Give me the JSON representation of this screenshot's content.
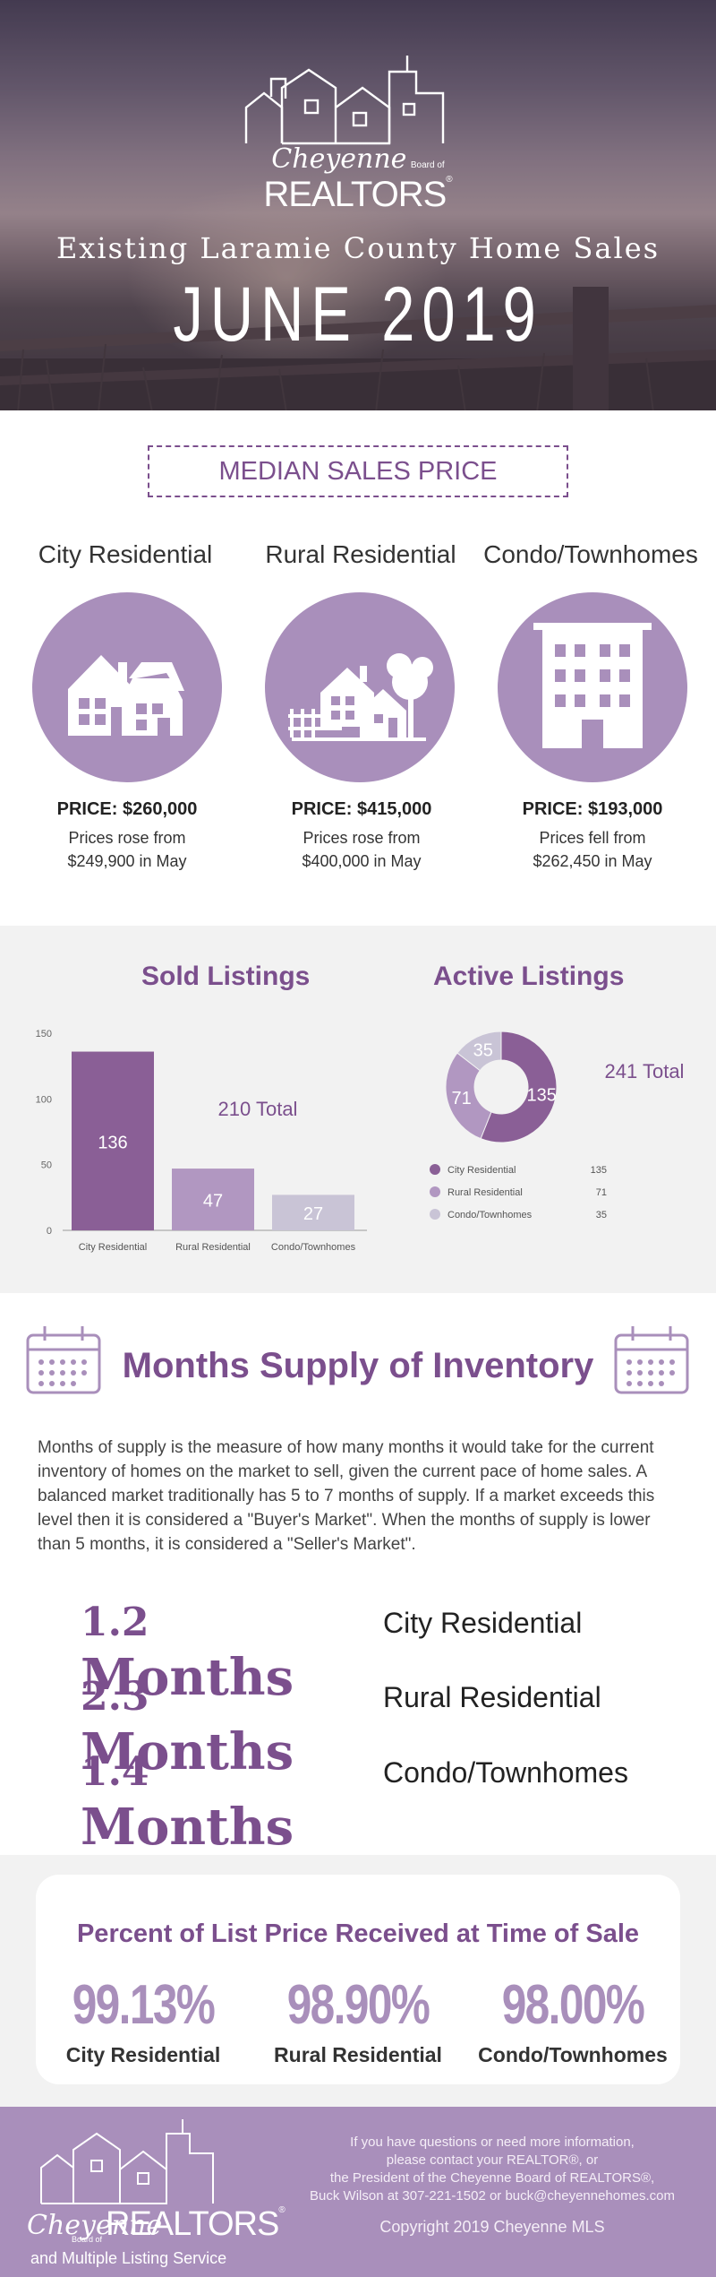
{
  "hero": {
    "brand_script": "Cheyenne",
    "brand_board": "Board of",
    "brand_name": "REALTORS",
    "brand_reg": "®",
    "title": "Existing Laramie County Home Sales",
    "period": "JUNE 2019"
  },
  "median": {
    "section_title": "MEDIAN SALES PRICE",
    "items": [
      {
        "type": "City Residential",
        "icon": "house-icon",
        "price": "PRICE: $260,000",
        "note1": "Prices rose from",
        "note2": "$249,900 in May"
      },
      {
        "type": "Rural Residential",
        "icon": "rural-house-icon",
        "price": "PRICE: $415,000",
        "note1": "Prices rose from",
        "note2": "$400,000 in May"
      },
      {
        "type": "Condo/Townhomes",
        "icon": "building-icon",
        "price": "PRICE: $193,000",
        "note1": "Prices fell from",
        "note2": "$262,450 in May"
      }
    ]
  },
  "listings": {
    "sold_title": "Sold Listings",
    "active_title": "Active Listings",
    "colors": {
      "dark": "#8a5f96",
      "mid": "#b197c1",
      "light": "#c9c4d6"
    }
  },
  "chart_data": [
    {
      "type": "bar",
      "title": "Sold Listings",
      "categories": [
        "City Residential",
        "Rural Residential",
        "Condo/Townhomes"
      ],
      "values": [
        136,
        47,
        27
      ],
      "ylim": [
        0,
        150
      ],
      "yticks": [
        0,
        50,
        100,
        150
      ],
      "annotation": "210 Total"
    },
    {
      "type": "pie",
      "title": "Active Listings",
      "categories": [
        "City Residential",
        "Rural Residential",
        "Condo/Townhomes"
      ],
      "values": [
        135,
        71,
        35
      ],
      "annotation": "241 Total",
      "legend_placement": "bottom"
    }
  ],
  "months_supply": {
    "title": "Months Supply of Inventory",
    "paragraph": "Months of supply is the measure of how many months it would take for the current inventory of homes on the market to sell,  given the current pace of home sales. A balanced market traditionally has 5 to 7 months of supply. If a market exceeds this level then it is considered a \"Buyer's Market\". When the months of supply is lower than 5 months, it is considered a \"Seller's Market\".",
    "rows": [
      {
        "num": "1.2",
        "unit": "Months",
        "label": "City Residential"
      },
      {
        "num": "2.3",
        "unit": "Months",
        "label": "Rural Residential"
      },
      {
        "num": "1.4",
        "unit": "Months",
        "label": "Condo/Townhomes"
      }
    ]
  },
  "percent_list": {
    "title": "Percent of List Price Received at Time of Sale",
    "items": [
      {
        "value": "99.13%",
        "label": "City Residential"
      },
      {
        "value": "98.90%",
        "label": "Rural Residential"
      },
      {
        "value": "98.00%",
        "label": "Condo/Townhomes"
      }
    ]
  },
  "footer": {
    "brand_script": "Cheyenne",
    "brand_board": "Board of",
    "brand_name": "REALTORS",
    "brand_reg": "®",
    "brand_sub": "and Multiple Listing Service",
    "info_lines": [
      "If you have questions or need more information,",
      "please contact your REALTOR®, or",
      "the President of the Cheyenne Board of REALTORS®,",
      "Buck Wilson at 307-221-1502 or buck@cheyennehomes.com"
    ],
    "copyright": "Copyright 2019 Cheyenne MLS"
  }
}
